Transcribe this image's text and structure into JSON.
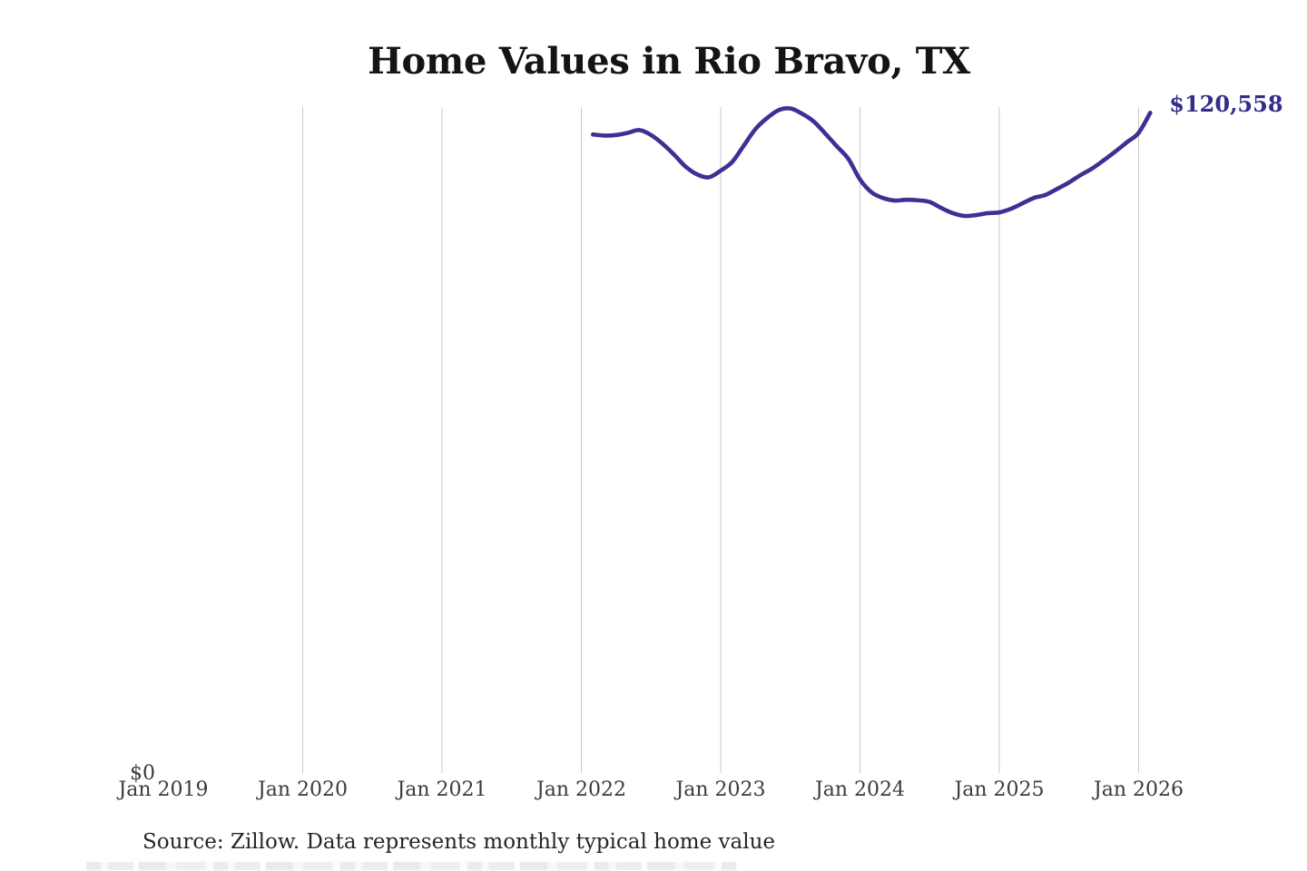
{
  "page": {
    "title": "Home Values in Rio Bravo, TX",
    "source_note": "Source: Zillow. Data represents monthly typical home value"
  },
  "colors": {
    "line": "#3a3193",
    "end_label": "#322c8a",
    "gridline": "#c9c9c9",
    "axis_text": "#3b3b3b",
    "title_text": "#141414",
    "source_text": "#262626"
  },
  "chart_data": {
    "type": "line",
    "title": "Home Values in Rio Bravo, TX",
    "xlabel": "",
    "ylabel": "",
    "x": [
      "2022-02",
      "2022-03",
      "2022-04",
      "2022-05",
      "2022-06",
      "2022-07",
      "2022-08",
      "2022-09",
      "2022-10",
      "2022-11",
      "2022-12",
      "2023-01",
      "2023-02",
      "2023-03",
      "2023-04",
      "2023-05",
      "2023-06",
      "2023-07",
      "2023-08",
      "2023-09",
      "2023-10",
      "2023-11",
      "2023-12",
      "2024-01",
      "2024-02",
      "2024-03",
      "2024-04",
      "2024-05",
      "2024-06",
      "2024-07",
      "2024-08",
      "2024-09",
      "2024-10",
      "2024-11",
      "2024-12",
      "2025-01",
      "2025-02",
      "2025-03",
      "2025-04",
      "2025-05",
      "2025-06",
      "2025-07",
      "2025-08",
      "2025-09",
      "2025-10",
      "2025-11",
      "2025-12",
      "2026-01",
      "2026-02"
    ],
    "values": [
      116600,
      116400,
      116500,
      116900,
      117400,
      116500,
      114900,
      112900,
      110700,
      109300,
      108800,
      110000,
      111600,
      114600,
      117600,
      119600,
      121050,
      121350,
      120400,
      119000,
      116800,
      114450,
      112150,
      108400,
      106050,
      105000,
      104550,
      104700,
      104600,
      104300,
      103200,
      102250,
      101750,
      101900,
      102250,
      102400,
      103050,
      104050,
      105050,
      105600,
      106700,
      107850,
      109200,
      110400,
      111900,
      113500,
      115200,
      116900,
      120558
    ],
    "ylim": [
      0,
      121600
    ],
    "y_tick_labels": [
      "$0"
    ],
    "x_tick_labels": [
      "Jan 2019",
      "Jan 2020",
      "Jan 2021",
      "Jan 2022",
      "Jan 2023",
      "Jan 2024",
      "Jan 2025",
      "Jan 2026"
    ],
    "x_tick_years": [
      2019,
      2020,
      2021,
      2022,
      2023,
      2024,
      2025,
      2026
    ],
    "gridline_years": [
      2020,
      2021,
      2022,
      2023,
      2024,
      2025,
      2026
    ],
    "grid": "vertical",
    "legend": "none",
    "end_label": "$120,558",
    "end_value": 120558
  }
}
